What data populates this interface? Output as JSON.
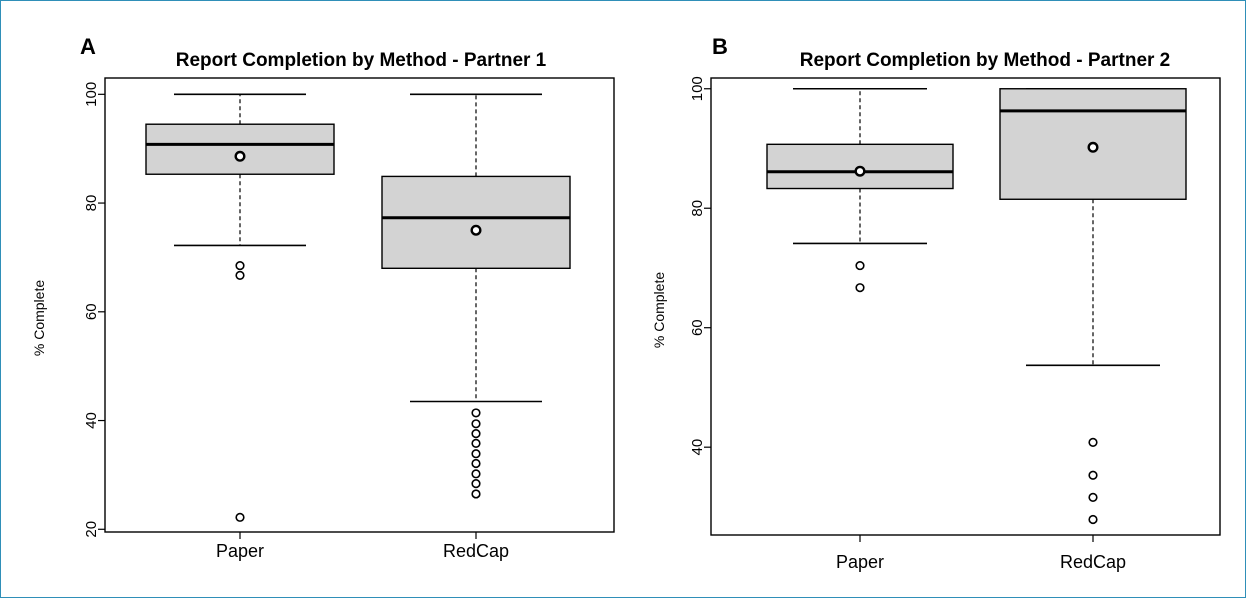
{
  "chart_data": [
    {
      "type": "boxplot",
      "panel_label": "A",
      "title": "Report Completion by Method - Partner 1",
      "ylabel": "% Complete",
      "xlabel": "",
      "ylim": [
        19.5,
        103
      ],
      "yticks": [
        20,
        40,
        60,
        80,
        100
      ],
      "categories": [
        "Paper",
        "RedCap"
      ],
      "boxes": [
        {
          "category": "Paper",
          "whisker_low": 72.2,
          "q1": 85.3,
          "median": 90.8,
          "q3": 94.5,
          "whisker_high": 100,
          "mean": 88.6,
          "outliers": [
            68.5,
            66.7,
            22.2
          ]
        },
        {
          "category": "RedCap",
          "whisker_low": 43.5,
          "q1": 68.0,
          "median": 77.3,
          "q3": 84.9,
          "whisker_high": 100,
          "mean": 75.0,
          "outliers": [
            41.4,
            39.4,
            37.6,
            35.8,
            33.9,
            32.1,
            30.2,
            28.4,
            26.5
          ]
        }
      ],
      "grid": false
    },
    {
      "type": "boxplot",
      "panel_label": "B",
      "title": "Report Completion by Method - Partner 2",
      "ylabel": "% Complete",
      "xlabel": "",
      "ylim": [
        25.3,
        101.8
      ],
      "yticks": [
        40,
        60,
        80,
        100
      ],
      "categories": [
        "Paper",
        "RedCap"
      ],
      "boxes": [
        {
          "category": "Paper",
          "whisker_low": 74.1,
          "q1": 83.3,
          "median": 86.1,
          "q3": 90.7,
          "whisker_high": 100,
          "mean": 86.2,
          "outliers": [
            70.4,
            66.7
          ]
        },
        {
          "category": "RedCap",
          "whisker_low": 53.7,
          "q1": 81.5,
          "median": 96.3,
          "q3": 100,
          "whisker_high": 100,
          "mean": 90.2,
          "outliers": [
            40.8,
            35.3,
            31.6,
            27.9
          ]
        }
      ],
      "grid": false
    }
  ],
  "colors": {
    "box_fill": "#d3d3d3",
    "stroke": "#000000",
    "frame_border": "#2f8fb8"
  }
}
